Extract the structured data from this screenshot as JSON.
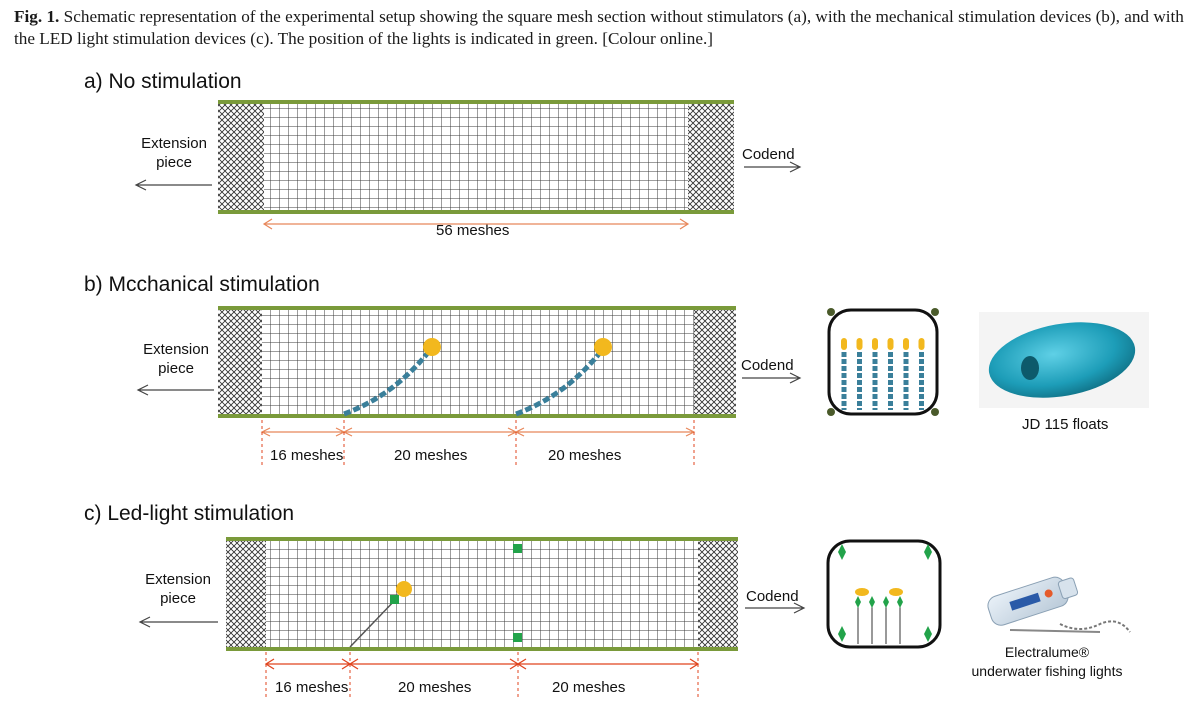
{
  "caption": {
    "fig_label": "Fig. 1.",
    "text": "Schematic representation of the experimental setup showing the square mesh section without stimulators (a), with the mechanical stimulation devices (b), and with the LED light stimulation devices (c). The position of the lights is indicated in green. [Colour online.]"
  },
  "panels": {
    "a": {
      "title": "a) No stimulation",
      "left_label_1": "Extension",
      "left_label_2": "piece",
      "right_label": "Codend",
      "dimension": "56 meshes"
    },
    "b": {
      "title": "b) Mcchanical stimulation",
      "left_label_1": "Extension",
      "left_label_2": "piece",
      "right_label": "Codend",
      "dim_1": "16 meshes",
      "dim_2": "20 meshes",
      "dim_3": "20 meshes",
      "photo_caption": "JD 115 floats"
    },
    "c": {
      "title": "c) Led-light stimulation",
      "left_label_1": "Extension",
      "left_label_2": "piece",
      "right_label": "Codend",
      "dim_1": "16 meshes",
      "dim_2": "20 meshes",
      "dim_3": "20 meshes",
      "photo_caption_1": "Electralume®",
      "photo_caption_2": "underwater fishing lights"
    }
  },
  "colors": {
    "rope": "#7a9a3a",
    "float_yellow": "#f2b81e",
    "chain_blue": "#3a7f9a",
    "led_green": "#22a34a",
    "arrow_orange": "#e8875a",
    "dim_red": "#e0451f"
  }
}
